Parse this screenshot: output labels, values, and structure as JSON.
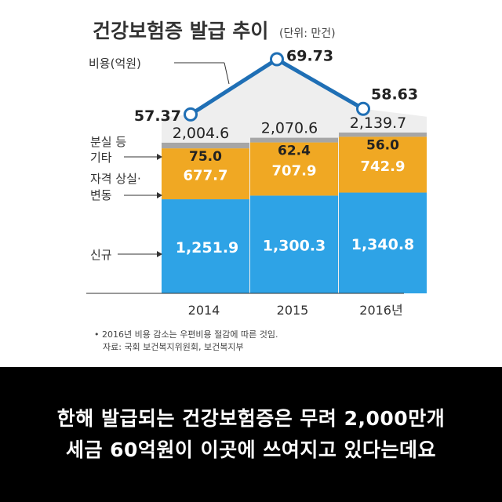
{
  "chart_data": {
    "type": "bar",
    "title": "건강보험증 발급 추이",
    "unit": "(단위: 만건)",
    "categories": [
      "2014",
      "2015",
      "2016년"
    ],
    "series": [
      {
        "name": "신규",
        "values": [
          1251.9,
          1300.3,
          1340.8
        ],
        "labels": [
          "1,251.9",
          "1,300.3",
          "1,340.8"
        ],
        "color": "#2ea3e6"
      },
      {
        "name": "자격 상실·변동",
        "values": [
          677.7,
          707.9,
          742.9
        ],
        "labels": [
          "677.7",
          "707.9",
          "742.9"
        ],
        "color": "#f0a823"
      },
      {
        "name": "분실 등 기타",
        "values": [
          75.0,
          62.4,
          56.0
        ],
        "labels": [
          "75.0",
          "62.4",
          "56.0"
        ],
        "color": "#a6a6a6"
      }
    ],
    "totals": [
      2004.6,
      2070.6,
      2139.7
    ],
    "total_labels": [
      "2,004.6",
      "2,070.6",
      "2,139.7"
    ],
    "cost_series": {
      "name": "비용(억원)",
      "values": [
        57.37,
        69.73,
        58.63
      ],
      "labels": [
        "57.37",
        "69.73",
        "58.63"
      ],
      "color": "#1f6fb5"
    },
    "legend_labels": {
      "cost": "비용(억원)",
      "etc_line1": "분실 등",
      "etc_line2": "기타",
      "change_line1": "자격 상실·",
      "change_line2": "변동",
      "new": "신규"
    },
    "notes": [
      "• 2016년 비용 감소는 우편비용 절감에 따른 것임.",
      "자료: 국회 보건복지위원회, 보건복지부"
    ],
    "ylim": [
      0,
      2200
    ],
    "cost_ylim": [
      50,
      75
    ]
  },
  "caption": {
    "line1": "한해 발급되는 건강보험증은 무려 2,000만개",
    "line2": "세금 60억원이 이곳에 쓰여지고 있다는데요"
  }
}
